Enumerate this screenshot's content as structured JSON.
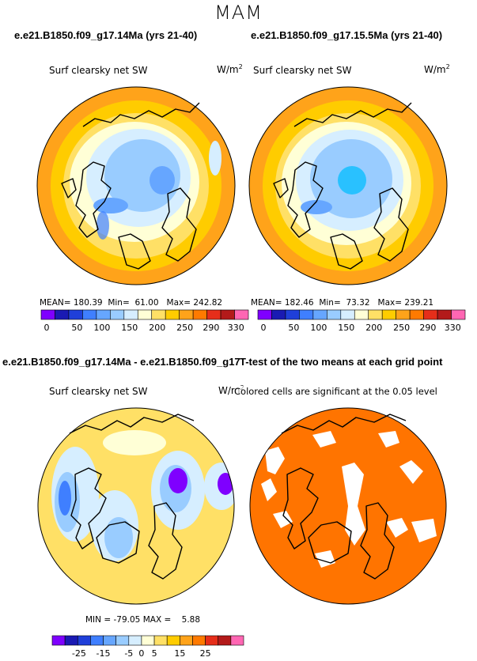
{
  "figure": {
    "season": "MAM",
    "variable": "Surf clearsky net SW",
    "units": "W/m",
    "units_exp": "2"
  },
  "chart_data": [
    {
      "type": "heatmap",
      "title": "e.e21.B1850.f09_g17.14Ma (yrs 21-40)",
      "label": "Surf clearsky net SW",
      "stats": {
        "mean_label": "MEAN=",
        "mean": "180.39",
        "min_label": "Min=",
        "min": "61.00",
        "max_label": "Max=",
        "max": "242.82"
      },
      "colorbar": {
        "colors": [
          "#7f00ff",
          "#1a1ab3",
          "#1f3fd9",
          "#3f7fff",
          "#66a6ff",
          "#99ccff",
          "#d6eeff",
          "#ffffd6",
          "#ffe066",
          "#ffcc00",
          "#ffa31a",
          "#ff7a00",
          "#e62e1a",
          "#b31a1a",
          "#ff66b3"
        ],
        "labels": [
          "0",
          "50",
          "100",
          "150",
          "200",
          "250",
          "290",
          "330"
        ]
      }
    },
    {
      "type": "heatmap",
      "title": "e.e21.B1850.f09_g17.15.5Ma (yrs 21-40)",
      "label": "Surf clearsky net SW",
      "stats": {
        "mean_label": "MEAN=",
        "mean": "182.46",
        "min_label": "Min=",
        "min": "73.32",
        "max_label": "Max=",
        "max": "239.21"
      },
      "colorbar": {
        "colors": [
          "#7f00ff",
          "#1a1ab3",
          "#1f3fd9",
          "#3f7fff",
          "#66a6ff",
          "#99ccff",
          "#d6eeff",
          "#ffffd6",
          "#ffe066",
          "#ffcc00",
          "#ffa31a",
          "#ff7a00",
          "#e62e1a",
          "#b31a1a",
          "#ff66b3"
        ],
        "labels": [
          "0",
          "50",
          "100",
          "150",
          "200",
          "250",
          "290",
          "330"
        ]
      }
    },
    {
      "type": "heatmap",
      "title": "e.e21.B1850.f09_g17.14Ma - e.e21.B1850.f09_g17.15.5Ma",
      "label": "Surf clearsky net SW",
      "stats": {
        "min_label": "MIN =",
        "min": "-79.05",
        "max_label": "MAX =",
        "max": "5.88"
      },
      "colorbar": {
        "colors": [
          "#7f00ff",
          "#1a1ab3",
          "#1f3fd9",
          "#3f7fff",
          "#66a6ff",
          "#99ccff",
          "#d6eeff",
          "#ffffd6",
          "#ffe066",
          "#ffcc00",
          "#ffa31a",
          "#ff7a00",
          "#e62e1a",
          "#b31a1a",
          "#ff66b3"
        ],
        "labels": [
          "-25",
          "-15",
          "-5",
          "0",
          "5",
          "15",
          "25"
        ]
      }
    },
    {
      "type": "heatmap",
      "title": "T-test of the two means at each grid point",
      "label": "Colored cells are significant at the 0.05 level",
      "colors": {
        "significant": "#ff7400",
        "not_significant": "#ffffff"
      }
    }
  ]
}
